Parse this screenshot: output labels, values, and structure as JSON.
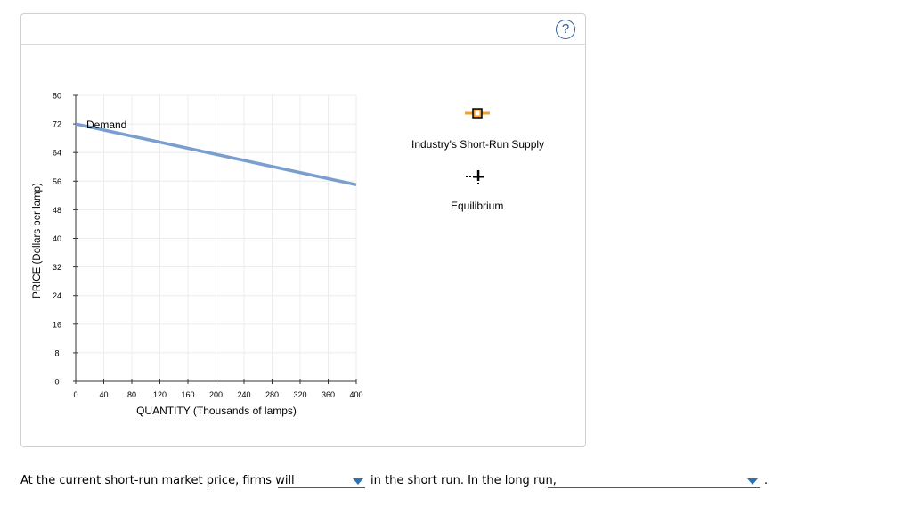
{
  "help": {
    "label": "?"
  },
  "chart_data": {
    "type": "line",
    "xlabel": "QUANTITY (Thousands of lamps)",
    "ylabel": "PRICE (Dollars per lamp)",
    "xlim": [
      0,
      400
    ],
    "ylim": [
      0,
      80
    ],
    "x_ticks": [
      "0",
      "40",
      "80",
      "120",
      "160",
      "200",
      "240",
      "280",
      "320",
      "360",
      "400"
    ],
    "y_ticks": [
      "0",
      "8",
      "16",
      "24",
      "32",
      "40",
      "48",
      "56",
      "64",
      "72",
      "80"
    ],
    "grid": true,
    "series": [
      {
        "name": "Demand",
        "x": [
          0,
          400
        ],
        "y": [
          72,
          55
        ],
        "color": "#7a9fcf"
      }
    ]
  },
  "legend": {
    "supply_label": "Industry's Short-Run Supply",
    "supply_color": "#f0a030",
    "equilibrium_label": "Equilibrium",
    "equilibrium_color": "#000000"
  },
  "question": {
    "part1": "At the current short-run market price, firms will",
    "part2": "in the short run. In the long run,",
    "part3": ".",
    "dropdown1_value": "",
    "dropdown2_value": ""
  }
}
